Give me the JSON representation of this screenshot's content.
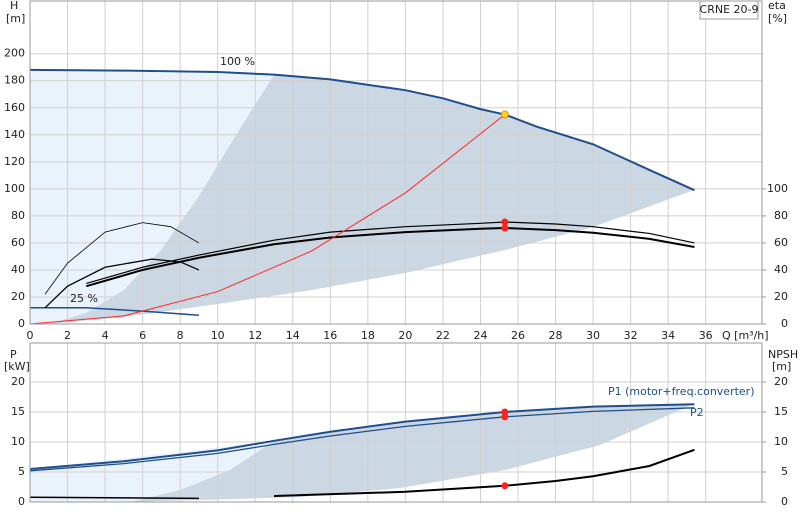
{
  "chart_data": [
    {
      "type": "line",
      "title": "CRNE 20-9",
      "ylabel": "H",
      "yunit": "[m]",
      "y2label": "eta",
      "y2unit": "[%]",
      "xlabel": "Q [m³/h]",
      "annotations": [
        "100 %",
        "25 %"
      ],
      "grid": true,
      "xlim": [
        0,
        39
      ],
      "xticks": [
        0,
        2,
        4,
        6,
        8,
        10,
        12,
        14,
        16,
        18,
        20,
        22,
        24,
        26,
        28,
        30,
        32,
        34,
        36
      ],
      "ylim": [
        0,
        239
      ],
      "yticks": [
        0,
        20,
        40,
        60,
        80,
        100,
        120,
        140,
        160,
        180,
        200
      ],
      "y2lim": [
        0,
        239
      ],
      "y2ticks": [
        0,
        20,
        40,
        60,
        80,
        100
      ],
      "series": [
        {
          "color": "#1f4e8c",
          "width": 2,
          "x": [
            0,
            5,
            10,
            13,
            16,
            20,
            22,
            24,
            25.3,
            27,
            30,
            33,
            35.4
          ],
          "values": [
            188,
            187.5,
            186.5,
            184.5,
            181,
            173,
            167,
            159,
            155,
            146,
            133,
            114,
            99
          ]
        },
        {
          "color": "#1f4e8c",
          "width": 1.5,
          "x": [
            0,
            3,
            6,
            9
          ],
          "values": [
            12,
            12,
            9.5,
            6.5
          ]
        },
        {
          "color": "#000000",
          "width": 1.2,
          "axis": "y2",
          "x": [
            3,
            6,
            9,
            13,
            16,
            20,
            24,
            25.3,
            28,
            30,
            33,
            35.4
          ],
          "values": [
            30,
            42,
            51,
            62,
            68,
            72,
            74.5,
            75.5,
            74,
            72,
            67,
            60
          ]
        },
        {
          "color": "#000000",
          "width": 2,
          "axis": "y2",
          "x": [
            3,
            6,
            9,
            13,
            16,
            20,
            24,
            25.3,
            28,
            30,
            33,
            35.4
          ],
          "values": [
            28,
            40,
            49,
            59,
            64,
            68,
            70.5,
            71,
            69.5,
            67.5,
            63,
            57
          ]
        },
        {
          "color": "#000000",
          "width": 0.8,
          "axis": "y2",
          "x": [
            0.8,
            2,
            4,
            6,
            7.5,
            9
          ],
          "values": [
            22,
            45,
            68,
            75,
            72,
            60
          ]
        },
        {
          "color": "#000000",
          "width": 1.3,
          "axis": "y2",
          "x": [
            0.8,
            2,
            4,
            6.5,
            8,
            9
          ],
          "values": [
            12,
            28,
            42,
            48,
            46,
            40
          ]
        },
        {
          "color": "#ff2a2a",
          "width": 1,
          "x": [
            0,
            5,
            10,
            15,
            20,
            25.3
          ],
          "values": [
            0,
            6,
            24,
            54,
            97,
            155
          ]
        }
      ],
      "points": [
        {
          "x": 25.3,
          "y": 155,
          "color": "#ffd21f"
        },
        {
          "x": 25.3,
          "y": 75.5,
          "axis": "y2",
          "color": "#ff2020"
        },
        {
          "x": 25.3,
          "y": 71,
          "axis": "y2",
          "color": "#ff2020"
        }
      ]
    },
    {
      "type": "line",
      "ylabel": "P",
      "yunit": "[kW]",
      "y2label": "NPSH",
      "y2unit": "[m]",
      "grid": true,
      "xlim": [
        0,
        39
      ],
      "ylim": [
        0,
        26.5
      ],
      "yticks": [
        0,
        5,
        10,
        15,
        20
      ],
      "y2lim": [
        0,
        26.5
      ],
      "y2ticks": [
        0,
        5,
        10,
        15,
        20
      ],
      "series": [
        {
          "name": "P1 (motor+freq.converter)",
          "color": "#1f4e8c",
          "width": 2,
          "x": [
            0,
            5,
            10,
            13,
            16,
            20,
            25.3,
            30,
            35.4
          ],
          "values": [
            5.5,
            6.8,
            8.6,
            10.2,
            11.7,
            13.4,
            15,
            15.9,
            16.3
          ]
        },
        {
          "name": "P2",
          "color": "#1f4e8c",
          "width": 1.3,
          "x": [
            0,
            5,
            10,
            13,
            16,
            20,
            25.3,
            30,
            35.4
          ],
          "values": [
            5.2,
            6.4,
            8.1,
            9.6,
            11,
            12.6,
            14.2,
            15.1,
            15.7
          ]
        },
        {
          "color": "#000000",
          "width": 2,
          "axis": "y2",
          "x": [
            13,
            20,
            25.3,
            28,
            30,
            33,
            35.4
          ],
          "values": [
            1,
            1.7,
            2.7,
            3.5,
            4.3,
            6,
            8.7
          ]
        },
        {
          "color": "#000000",
          "width": 1.5,
          "x": [
            0,
            9
          ],
          "values": [
            0.8,
            0.6
          ]
        }
      ],
      "points": [
        {
          "x": 25.3,
          "y": 15,
          "color": "#ff2020"
        },
        {
          "x": 25.3,
          "y": 14.2,
          "color": "#ff2020"
        },
        {
          "x": 25.3,
          "y": 2.7,
          "axis": "y2",
          "color": "#ff2020"
        }
      ]
    }
  ]
}
